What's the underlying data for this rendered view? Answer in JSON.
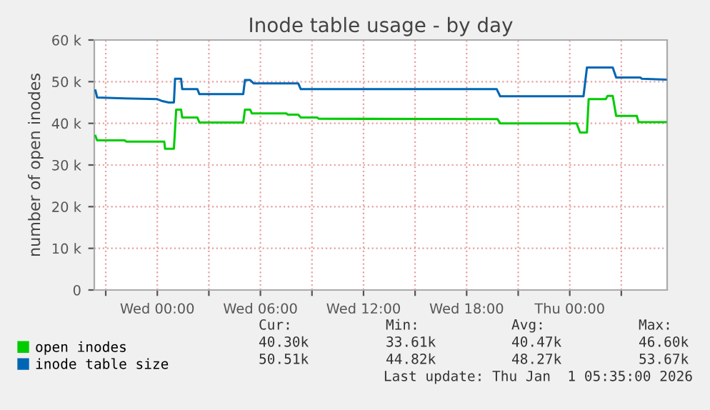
{
  "chart_data": {
    "type": "line",
    "title": "Inode table usage - by day",
    "ylabel": "number of open inodes",
    "xlim": [
      "2025-12-30T20:20",
      "2026-01-01T05:40"
    ],
    "ylim": [
      0,
      60000
    ],
    "xticks": [
      {
        "value": "2025-12-30T21:00",
        "label": null
      },
      {
        "value": "2025-12-31T00:00",
        "label": "Wed 00:00"
      },
      {
        "value": "2025-12-31T03:00",
        "label": null
      },
      {
        "value": "2025-12-31T06:00",
        "label": "Wed 06:00"
      },
      {
        "value": "2025-12-31T09:00",
        "label": null
      },
      {
        "value": "2025-12-31T12:00",
        "label": "Wed 12:00"
      },
      {
        "value": "2025-12-31T15:00",
        "label": null
      },
      {
        "value": "2025-12-31T18:00",
        "label": "Wed 18:00"
      },
      {
        "value": "2025-12-31T21:00",
        "label": null
      },
      {
        "value": "2026-01-01T00:00",
        "label": "Thu 00:00"
      },
      {
        "value": "2026-01-01T03:00",
        "label": null
      }
    ],
    "yticks": [
      {
        "value": 0,
        "label": "0"
      },
      {
        "value": 10000,
        "label": "10 k"
      },
      {
        "value": 20000,
        "label": "20 k"
      },
      {
        "value": 30000,
        "label": "30 k"
      },
      {
        "value": 40000,
        "label": "40 k"
      },
      {
        "value": 50000,
        "label": "50 k"
      },
      {
        "value": 60000,
        "label": "60 k"
      }
    ],
    "grid": true,
    "legend": "bottom",
    "marker": "none",
    "line_style": "solid",
    "series": [
      {
        "name": "open inodes",
        "color": "#00cc00",
        "x": [
          "2025-12-30T20:24",
          "2025-12-30T20:30",
          "2025-12-30T22:06",
          "2025-12-30T22:12",
          "2025-12-31T00:24",
          "2025-12-31T00:25",
          "2025-12-31T00:27",
          "2025-12-31T00:58",
          "2025-12-31T01:06",
          "2025-12-31T01:23",
          "2025-12-31T01:27",
          "2025-12-31T02:20",
          "2025-12-31T02:27",
          "2025-12-31T05:00",
          "2025-12-31T05:06",
          "2025-12-31T05:24",
          "2025-12-31T05:30",
          "2025-12-31T07:30",
          "2025-12-31T07:36",
          "2025-12-31T08:12",
          "2025-12-31T08:21",
          "2025-12-31T09:18",
          "2025-12-31T09:24",
          "2025-12-31T19:48",
          "2025-12-31T19:57",
          "2026-01-01T00:24",
          "2026-01-01T00:36",
          "2026-01-01T01:00",
          "2026-01-01T01:06",
          "2026-01-01T02:06",
          "2026-01-01T02:12",
          "2026-01-01T02:30",
          "2026-01-01T02:42",
          "2026-01-01T03:54",
          "2026-01-01T04:00",
          "2026-01-01T05:35"
        ],
        "values": [
          37000,
          35900,
          35900,
          35600,
          35600,
          35300,
          33900,
          33900,
          43300,
          43300,
          41400,
          41400,
          40200,
          40200,
          43300,
          43300,
          42400,
          42400,
          42100,
          42100,
          41400,
          41400,
          41100,
          41000,
          40000,
          40000,
          37800,
          37800,
          45800,
          45800,
          46600,
          46600,
          41800,
          41800,
          40300,
          40300
        ]
      },
      {
        "name": "inode table size",
        "color": "#0066b3",
        "x": [
          "2025-12-30T20:24",
          "2025-12-30T20:30",
          "2025-12-30T22:06",
          "2025-12-31T00:00",
          "2025-12-31T00:15",
          "2025-12-31T00:40",
          "2025-12-31T00:58",
          "2025-12-31T01:02",
          "2025-12-31T01:23",
          "2025-12-31T01:27",
          "2025-12-31T02:20",
          "2025-12-31T02:27",
          "2025-12-31T05:00",
          "2025-12-31T05:06",
          "2025-12-31T05:24",
          "2025-12-31T05:36",
          "2025-12-31T08:12",
          "2025-12-31T08:21",
          "2025-12-31T19:45",
          "2025-12-31T19:57",
          "2026-01-01T00:48",
          "2026-01-01T01:00",
          "2026-01-01T02:30",
          "2026-01-01T02:42",
          "2026-01-01T04:06",
          "2026-01-01T04:12",
          "2026-01-01T05:35"
        ],
        "values": [
          47900,
          46200,
          46000,
          45800,
          45400,
          45000,
          45000,
          50700,
          50700,
          48200,
          48200,
          47000,
          47000,
          50400,
          50400,
          49600,
          49600,
          48200,
          48200,
          46500,
          46500,
          53400,
          53400,
          51000,
          51000,
          50700,
          50500
        ]
      }
    ],
    "annotations": [
      "Cur:",
      "Min:",
      "Avg:",
      "Max:",
      "40.30k",
      "33.61k",
      "40.47k",
      "46.60k",
      "50.51k",
      "44.82k",
      "48.27k",
      "53.67k",
      "Last update: Thu Jan  1 05:35:00 2026"
    ]
  }
}
